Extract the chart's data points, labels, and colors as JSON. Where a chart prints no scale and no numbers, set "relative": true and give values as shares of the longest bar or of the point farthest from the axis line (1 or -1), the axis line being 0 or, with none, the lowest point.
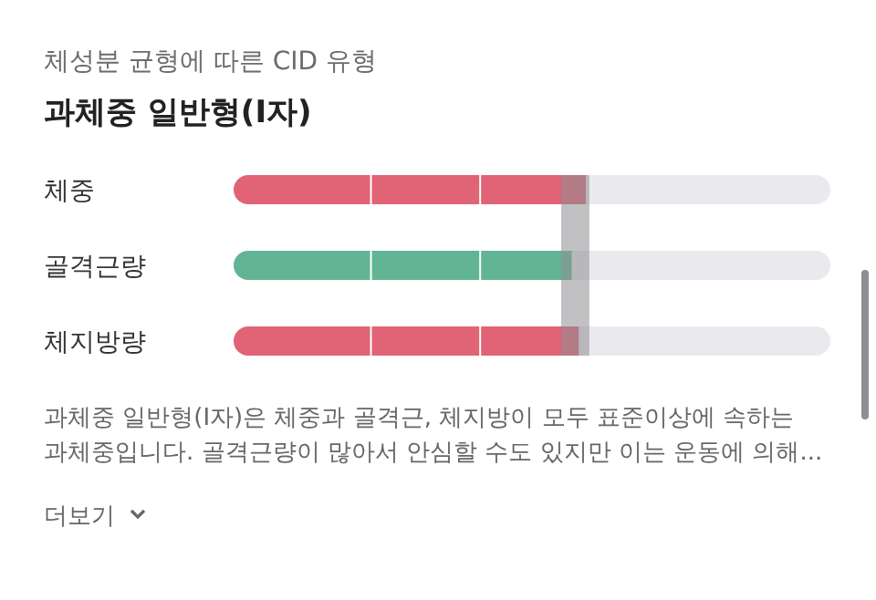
{
  "chart_data": {
    "type": "bar",
    "orientation": "horizontal",
    "relative": true,
    "subtitle": "체성분 균형에 따른 CID 유형",
    "title": "과체중 일반형(I자)",
    "categories": [
      "체중",
      "골격근량",
      "체지방량"
    ],
    "values": [
      1,
      0.96,
      0.98
    ],
    "colors": [
      "#e06475",
      "#62b594",
      "#e06475"
    ],
    "bands": [
      {
        "axis": "x",
        "from": 0.93,
        "to": 1.01,
        "color": "#8e8e93"
      }
    ],
    "annotations": [
      "과체중 일반형(I자)은 체중과 골격근, 체지방이 모두 표준이상에 속하는",
      "과체중입니다. 골격근량이 많아서 안심할 수도 있지만 이는 운동에 의해...",
      "더보기"
    ]
  }
}
